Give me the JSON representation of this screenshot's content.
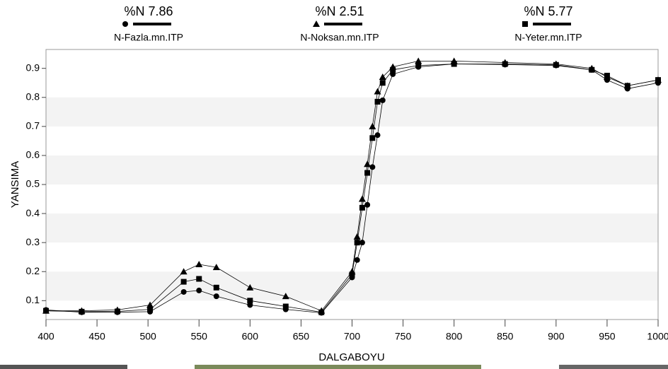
{
  "chart_data": {
    "type": "line",
    "x_label": "DALGABOYU",
    "y_label": "YANSIMA",
    "x": [
      400,
      435,
      470,
      502,
      535,
      550,
      567,
      600,
      635,
      670,
      700,
      705,
      710,
      715,
      720,
      725,
      730,
      740,
      765,
      800,
      850,
      900,
      935,
      950,
      970,
      1000
    ],
    "series": [
      {
        "name": "N-Fazla.mn.ITP",
        "label": "%N 7.86",
        "marker": "circle",
        "color": "#000000",
        "values": [
          0.068,
          0.06,
          0.06,
          0.062,
          0.13,
          0.135,
          0.115,
          0.085,
          0.07,
          0.058,
          0.18,
          0.24,
          0.3,
          0.43,
          0.56,
          0.67,
          0.79,
          0.88,
          0.905,
          0.915,
          0.913,
          0.91,
          0.895,
          0.86,
          0.83,
          0.85
        ]
      },
      {
        "name": "N-Noksan.mn.ITP",
        "label": "%N 2.51",
        "marker": "triangle",
        "color": "#000000",
        "values": [
          0.065,
          0.065,
          0.068,
          0.085,
          0.2,
          0.225,
          0.215,
          0.145,
          0.115,
          0.065,
          0.2,
          0.32,
          0.45,
          0.57,
          0.7,
          0.82,
          0.87,
          0.905,
          0.925,
          0.925,
          0.92,
          0.915,
          0.9,
          0.87,
          0.84,
          0.86
        ]
      },
      {
        "name": "N-Yeter.mn.ITP",
        "label": "%N 5.77",
        "marker": "square",
        "color": "#000000",
        "values": [
          0.065,
          0.062,
          0.063,
          0.07,
          0.165,
          0.175,
          0.145,
          0.1,
          0.08,
          0.06,
          0.19,
          0.3,
          0.42,
          0.54,
          0.66,
          0.785,
          0.85,
          0.895,
          0.91,
          0.915,
          0.915,
          0.912,
          0.895,
          0.875,
          0.84,
          0.86
        ]
      }
    ],
    "xlim": [
      400,
      1000
    ],
    "xticks": [
      400,
      450,
      500,
      550,
      600,
      650,
      700,
      750,
      800,
      850,
      900,
      950,
      1000
    ],
    "ylim": [
      0.035,
      0.965
    ],
    "yticks": [
      0.1,
      0.2,
      0.3,
      0.4,
      0.5,
      0.6,
      0.7,
      0.8,
      0.9
    ],
    "grid": true
  }
}
